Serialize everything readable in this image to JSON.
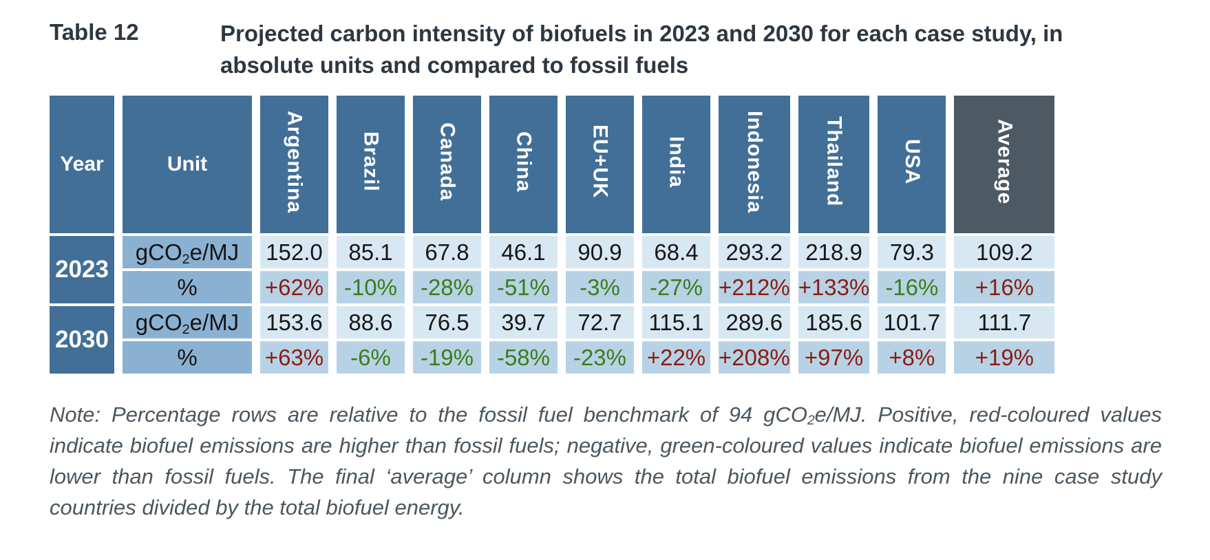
{
  "caption": {
    "label": "Table 12",
    "text": "Projected carbon intensity of biofuels in 2023 and 2030 for each case study, in absolute units and compared to fossil fuels"
  },
  "table": {
    "columns": {
      "year": "Year",
      "unit": "Unit",
      "countries": [
        "Argentina",
        "Brazil",
        "Canada",
        "China",
        "EU+UK",
        "India",
        "Indonesia",
        "Thailand",
        "USA"
      ],
      "average": "Average"
    },
    "unit_absolute": {
      "pre": "gCO",
      "sub": "2",
      "post": "e/MJ"
    },
    "unit_percent": "%",
    "groups": [
      {
        "year": "2023",
        "absolute": {
          "values": [
            "152.0",
            "85.1",
            "67.8",
            "46.1",
            "90.9",
            "68.4",
            "293.2",
            "218.9",
            "79.3"
          ],
          "average": "109.2"
        },
        "percent": {
          "values": [
            "+62%",
            "-10%",
            "-28%",
            "-51%",
            "-3%",
            "-27%",
            "+212%",
            "+133%",
            "-16%"
          ],
          "average": "+16%"
        }
      },
      {
        "year": "2030",
        "absolute": {
          "values": [
            "153.6",
            "88.6",
            "76.5",
            "39.7",
            "72.7",
            "115.1",
            "289.6",
            "185.6",
            "101.7"
          ],
          "average": "111.7"
        },
        "percent": {
          "values": [
            "+63%",
            "-6%",
            "-19%",
            "-58%",
            "-23%",
            "+22%",
            "+208%",
            "+97%",
            "+8%"
          ],
          "average": "+19%"
        }
      }
    ]
  },
  "note": {
    "part1": "Note: Percentage rows are relative to the fossil fuel benchmark of 94 gCO",
    "sub": "2",
    "part2": "e/MJ. Positive, red-coloured values indicate biofuel emissions are higher than fossil fuels; negative, green-coloured values indicate biofuel emissions are lower than fossil fuels. The final ‘average’ column shows the total biofuel emissions from the nine case study countries divided by the total biofuel energy."
  },
  "colors": {
    "header_blue": "#416f97",
    "unit_blue": "#8ab1d2",
    "value_row": "#d8e8f3",
    "percent_row": "#b8d2e5",
    "average_header": "#4d5963",
    "average_cell": "#95a3ae",
    "positive_red": "#8a1c12",
    "negative_green": "#3a7d1a"
  }
}
